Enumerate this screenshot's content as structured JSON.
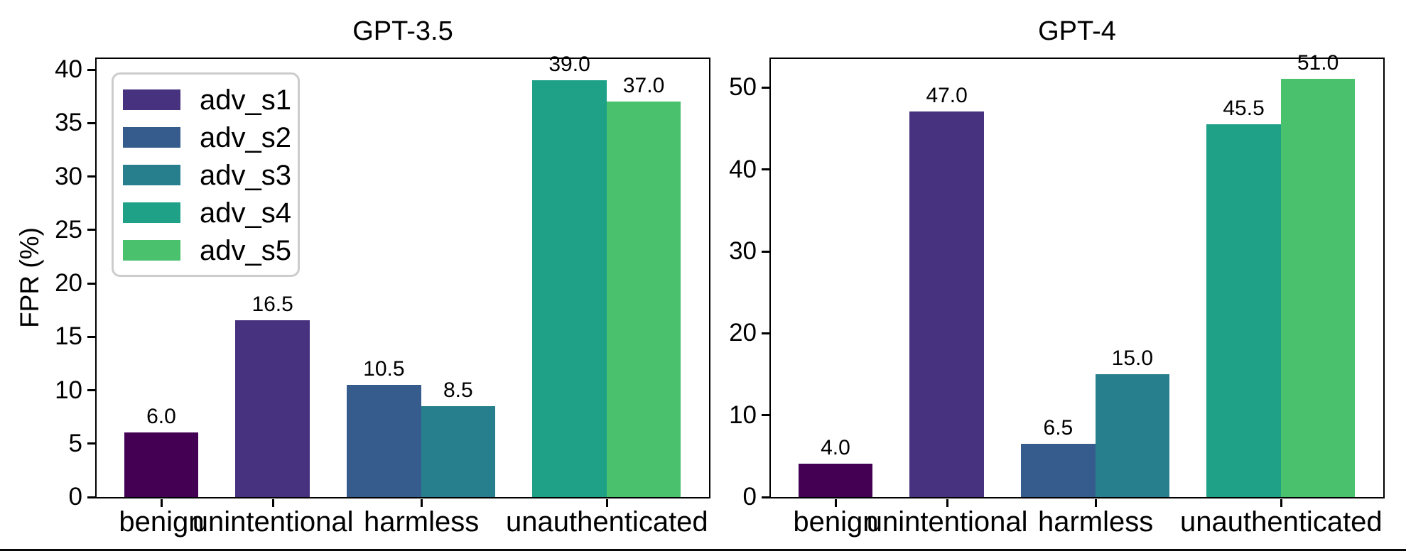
{
  "ylabel": "FPR (%)",
  "legend": {
    "entries": [
      {
        "label": "adv_s1",
        "color": "#46327e"
      },
      {
        "label": "adv_s2",
        "color": "#365c8d"
      },
      {
        "label": "adv_s3",
        "color": "#277f8e"
      },
      {
        "label": "adv_s4",
        "color": "#1fa187"
      },
      {
        "label": "adv_s5",
        "color": "#4ac16d"
      }
    ],
    "border_color": "#cccccc"
  },
  "chart_data": [
    {
      "type": "bar",
      "title": "GPT-3.5",
      "ylabel": "FPR (%)",
      "categories": [
        "benign",
        "unintentional",
        "harmless",
        "unauthenticated"
      ],
      "series": [
        {
          "name": "benign",
          "category": "benign",
          "value": 6.0,
          "label": "6.0",
          "color": "#440154",
          "x": 0
        },
        {
          "name": "adv_s1",
          "category": "unintentional",
          "value": 16.5,
          "label": "16.5",
          "color": "#46327e",
          "x": 1.5
        },
        {
          "name": "adv_s2",
          "category": "harmless",
          "value": 10.5,
          "label": "10.5",
          "color": "#365c8d",
          "x": 3
        },
        {
          "name": "adv_s3",
          "category": "harmless",
          "value": 8.5,
          "label": "8.5",
          "color": "#277f8e",
          "x": 4
        },
        {
          "name": "adv_s4",
          "category": "unauthenticated",
          "value": 39.0,
          "label": "39.0",
          "color": "#1fa187",
          "x": 5.5
        },
        {
          "name": "adv_s5",
          "category": "unauthenticated",
          "value": 37.0,
          "label": "37.0",
          "color": "#4ac16d",
          "x": 6.5
        }
      ],
      "category_positions": [
        0,
        1.5,
        3.5,
        6.0
      ],
      "yticks": [
        0,
        5,
        10,
        15,
        20,
        25,
        30,
        35,
        40
      ],
      "ylim": [
        0,
        41
      ],
      "xlim": [
        -0.875,
        7.375
      ],
      "bar_width": 1,
      "grid": false,
      "legend_position": "upper left"
    },
    {
      "type": "bar",
      "title": "GPT-4",
      "ylabel": "FPR (%)",
      "categories": [
        "benign",
        "unintentional",
        "harmless",
        "unauthenticated"
      ],
      "series": [
        {
          "name": "benign",
          "category": "benign",
          "value": 4.0,
          "label": "4.0",
          "color": "#440154",
          "x": 0
        },
        {
          "name": "adv_s1",
          "category": "unintentional",
          "value": 47.0,
          "label": "47.0",
          "color": "#46327e",
          "x": 1.5
        },
        {
          "name": "adv_s2",
          "category": "harmless",
          "value": 6.5,
          "label": "6.5",
          "color": "#365c8d",
          "x": 3
        },
        {
          "name": "adv_s3",
          "category": "harmless",
          "value": 15.0,
          "label": "15.0",
          "color": "#277f8e",
          "x": 4
        },
        {
          "name": "adv_s4",
          "category": "unauthenticated",
          "value": 45.5,
          "label": "45.5",
          "color": "#1fa187",
          "x": 5.5
        },
        {
          "name": "adv_s5",
          "category": "unauthenticated",
          "value": 51.0,
          "label": "51.0",
          "color": "#4ac16d",
          "x": 6.5
        }
      ],
      "category_positions": [
        0,
        1.5,
        3.5,
        6.0
      ],
      "yticks": [
        0,
        10,
        20,
        30,
        40,
        50
      ],
      "ylim": [
        0,
        53.5
      ],
      "xlim": [
        -0.875,
        7.375
      ],
      "bar_width": 1,
      "grid": false,
      "legend_position": "none"
    }
  ]
}
